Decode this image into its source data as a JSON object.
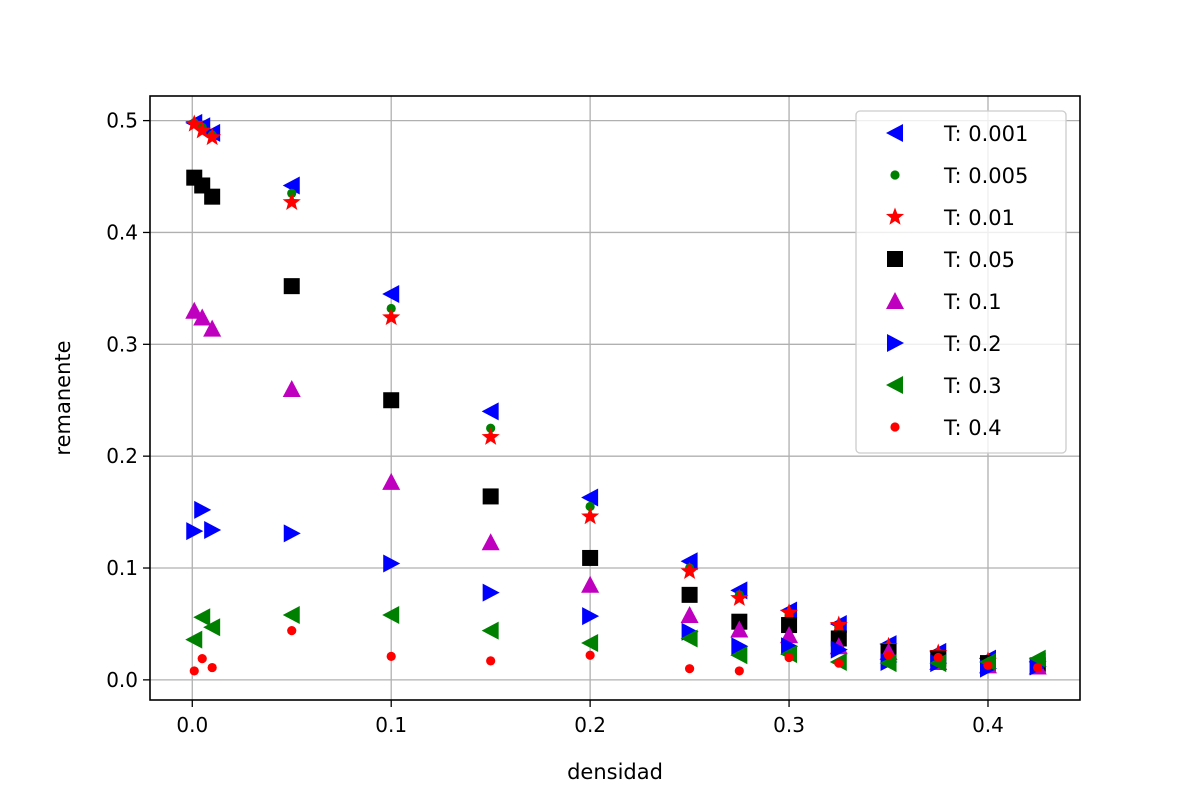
{
  "chart_data": {
    "type": "scatter",
    "xlabel": "densidad",
    "ylabel": "remanente",
    "xlim": [
      -0.02125,
      0.44625
    ],
    "ylim": [
      -0.018,
      0.522
    ],
    "xticks": [
      "0.0",
      "0.1",
      "0.2",
      "0.3",
      "0.4"
    ],
    "xtick_values": [
      0.0,
      0.1,
      0.2,
      0.3,
      0.4
    ],
    "yticks": [
      "0.0",
      "0.1",
      "0.2",
      "0.3",
      "0.4",
      "0.5"
    ],
    "ytick_values": [
      0.0,
      0.1,
      0.2,
      0.3,
      0.4,
      0.5
    ],
    "grid": true,
    "legend_position": "upper right",
    "series": [
      {
        "name": "T: 0.001",
        "marker": "triangle-left",
        "color": "#0000ff",
        "x": [
          0.001,
          0.005,
          0.01,
          0.05,
          0.1,
          0.15,
          0.2,
          0.25,
          0.275,
          0.3,
          0.325,
          0.35,
          0.375,
          0.4,
          0.425
        ],
        "y": [
          0.498,
          0.495,
          0.489,
          0.442,
          0.345,
          0.24,
          0.163,
          0.106,
          0.08,
          0.062,
          0.05,
          0.032,
          0.025,
          0.019,
          0.016
        ]
      },
      {
        "name": "T: 0.005",
        "marker": "circle-small",
        "color": "#008000",
        "x": [
          0.001,
          0.005,
          0.01,
          0.05,
          0.1,
          0.15,
          0.2,
          0.25,
          0.275,
          0.3,
          0.325,
          0.35,
          0.375,
          0.4,
          0.425
        ],
        "y": [
          0.498,
          0.494,
          0.487,
          0.435,
          0.332,
          0.225,
          0.155,
          0.1,
          0.076,
          0.058,
          0.047,
          0.03,
          0.024,
          0.018,
          0.015
        ]
      },
      {
        "name": "T: 0.01",
        "marker": "star",
        "color": "#ff0000",
        "x": [
          0.001,
          0.005,
          0.01,
          0.05,
          0.1,
          0.15,
          0.2,
          0.25,
          0.275,
          0.3,
          0.325,
          0.35,
          0.375,
          0.4,
          0.425
        ],
        "y": [
          0.497,
          0.491,
          0.485,
          0.427,
          0.324,
          0.217,
          0.146,
          0.097,
          0.073,
          0.06,
          0.049,
          0.03,
          0.024,
          0.017,
          0.014
        ]
      },
      {
        "name": "T: 0.05",
        "marker": "square",
        "color": "#000000",
        "x": [
          0.001,
          0.005,
          0.01,
          0.05,
          0.1,
          0.15,
          0.2,
          0.25,
          0.275,
          0.3,
          0.325,
          0.35,
          0.375,
          0.4,
          0.425
        ],
        "y": [
          0.449,
          0.442,
          0.432,
          0.352,
          0.25,
          0.164,
          0.109,
          0.076,
          0.052,
          0.049,
          0.037,
          0.025,
          0.019,
          0.015,
          0.013
        ]
      },
      {
        "name": "T: 0.1",
        "marker": "triangle-up",
        "color": "#bf00bf",
        "x": [
          0.001,
          0.005,
          0.01,
          0.05,
          0.1,
          0.15,
          0.2,
          0.25,
          0.275,
          0.3,
          0.325,
          0.35,
          0.375,
          0.4,
          0.425
        ],
        "y": [
          0.33,
          0.324,
          0.314,
          0.26,
          0.177,
          0.123,
          0.085,
          0.058,
          0.045,
          0.04,
          0.03,
          0.025,
          0.016,
          0.013,
          0.012
        ]
      },
      {
        "name": "T: 0.2",
        "marker": "triangle-right",
        "color": "#0000ff",
        "x": [
          0.001,
          0.005,
          0.01,
          0.05,
          0.1,
          0.15,
          0.2,
          0.25,
          0.275,
          0.3,
          0.325,
          0.35,
          0.375,
          0.4,
          0.425
        ],
        "y": [
          0.133,
          0.152,
          0.134,
          0.131,
          0.104,
          0.078,
          0.057,
          0.043,
          0.03,
          0.03,
          0.027,
          0.016,
          0.015,
          0.01,
          0.012
        ]
      },
      {
        "name": "T: 0.3",
        "marker": "triangle-left",
        "color": "#008000",
        "x": [
          0.001,
          0.005,
          0.01,
          0.05,
          0.1,
          0.15,
          0.2,
          0.25,
          0.275,
          0.3,
          0.325,
          0.35,
          0.375,
          0.4,
          0.425
        ],
        "y": [
          0.036,
          0.056,
          0.047,
          0.058,
          0.058,
          0.044,
          0.033,
          0.037,
          0.022,
          0.023,
          0.016,
          0.015,
          0.015,
          0.016,
          0.019
        ]
      },
      {
        "name": "T: 0.4",
        "marker": "circle-small",
        "color": "#ff0000",
        "x": [
          0.001,
          0.005,
          0.01,
          0.05,
          0.1,
          0.15,
          0.2,
          0.25,
          0.275,
          0.3,
          0.325,
          0.35,
          0.375,
          0.4,
          0.425
        ],
        "y": [
          0.008,
          0.019,
          0.011,
          0.044,
          0.021,
          0.017,
          0.022,
          0.01,
          0.008,
          0.02,
          0.015,
          0.022,
          0.02,
          0.013,
          0.011
        ]
      }
    ]
  }
}
